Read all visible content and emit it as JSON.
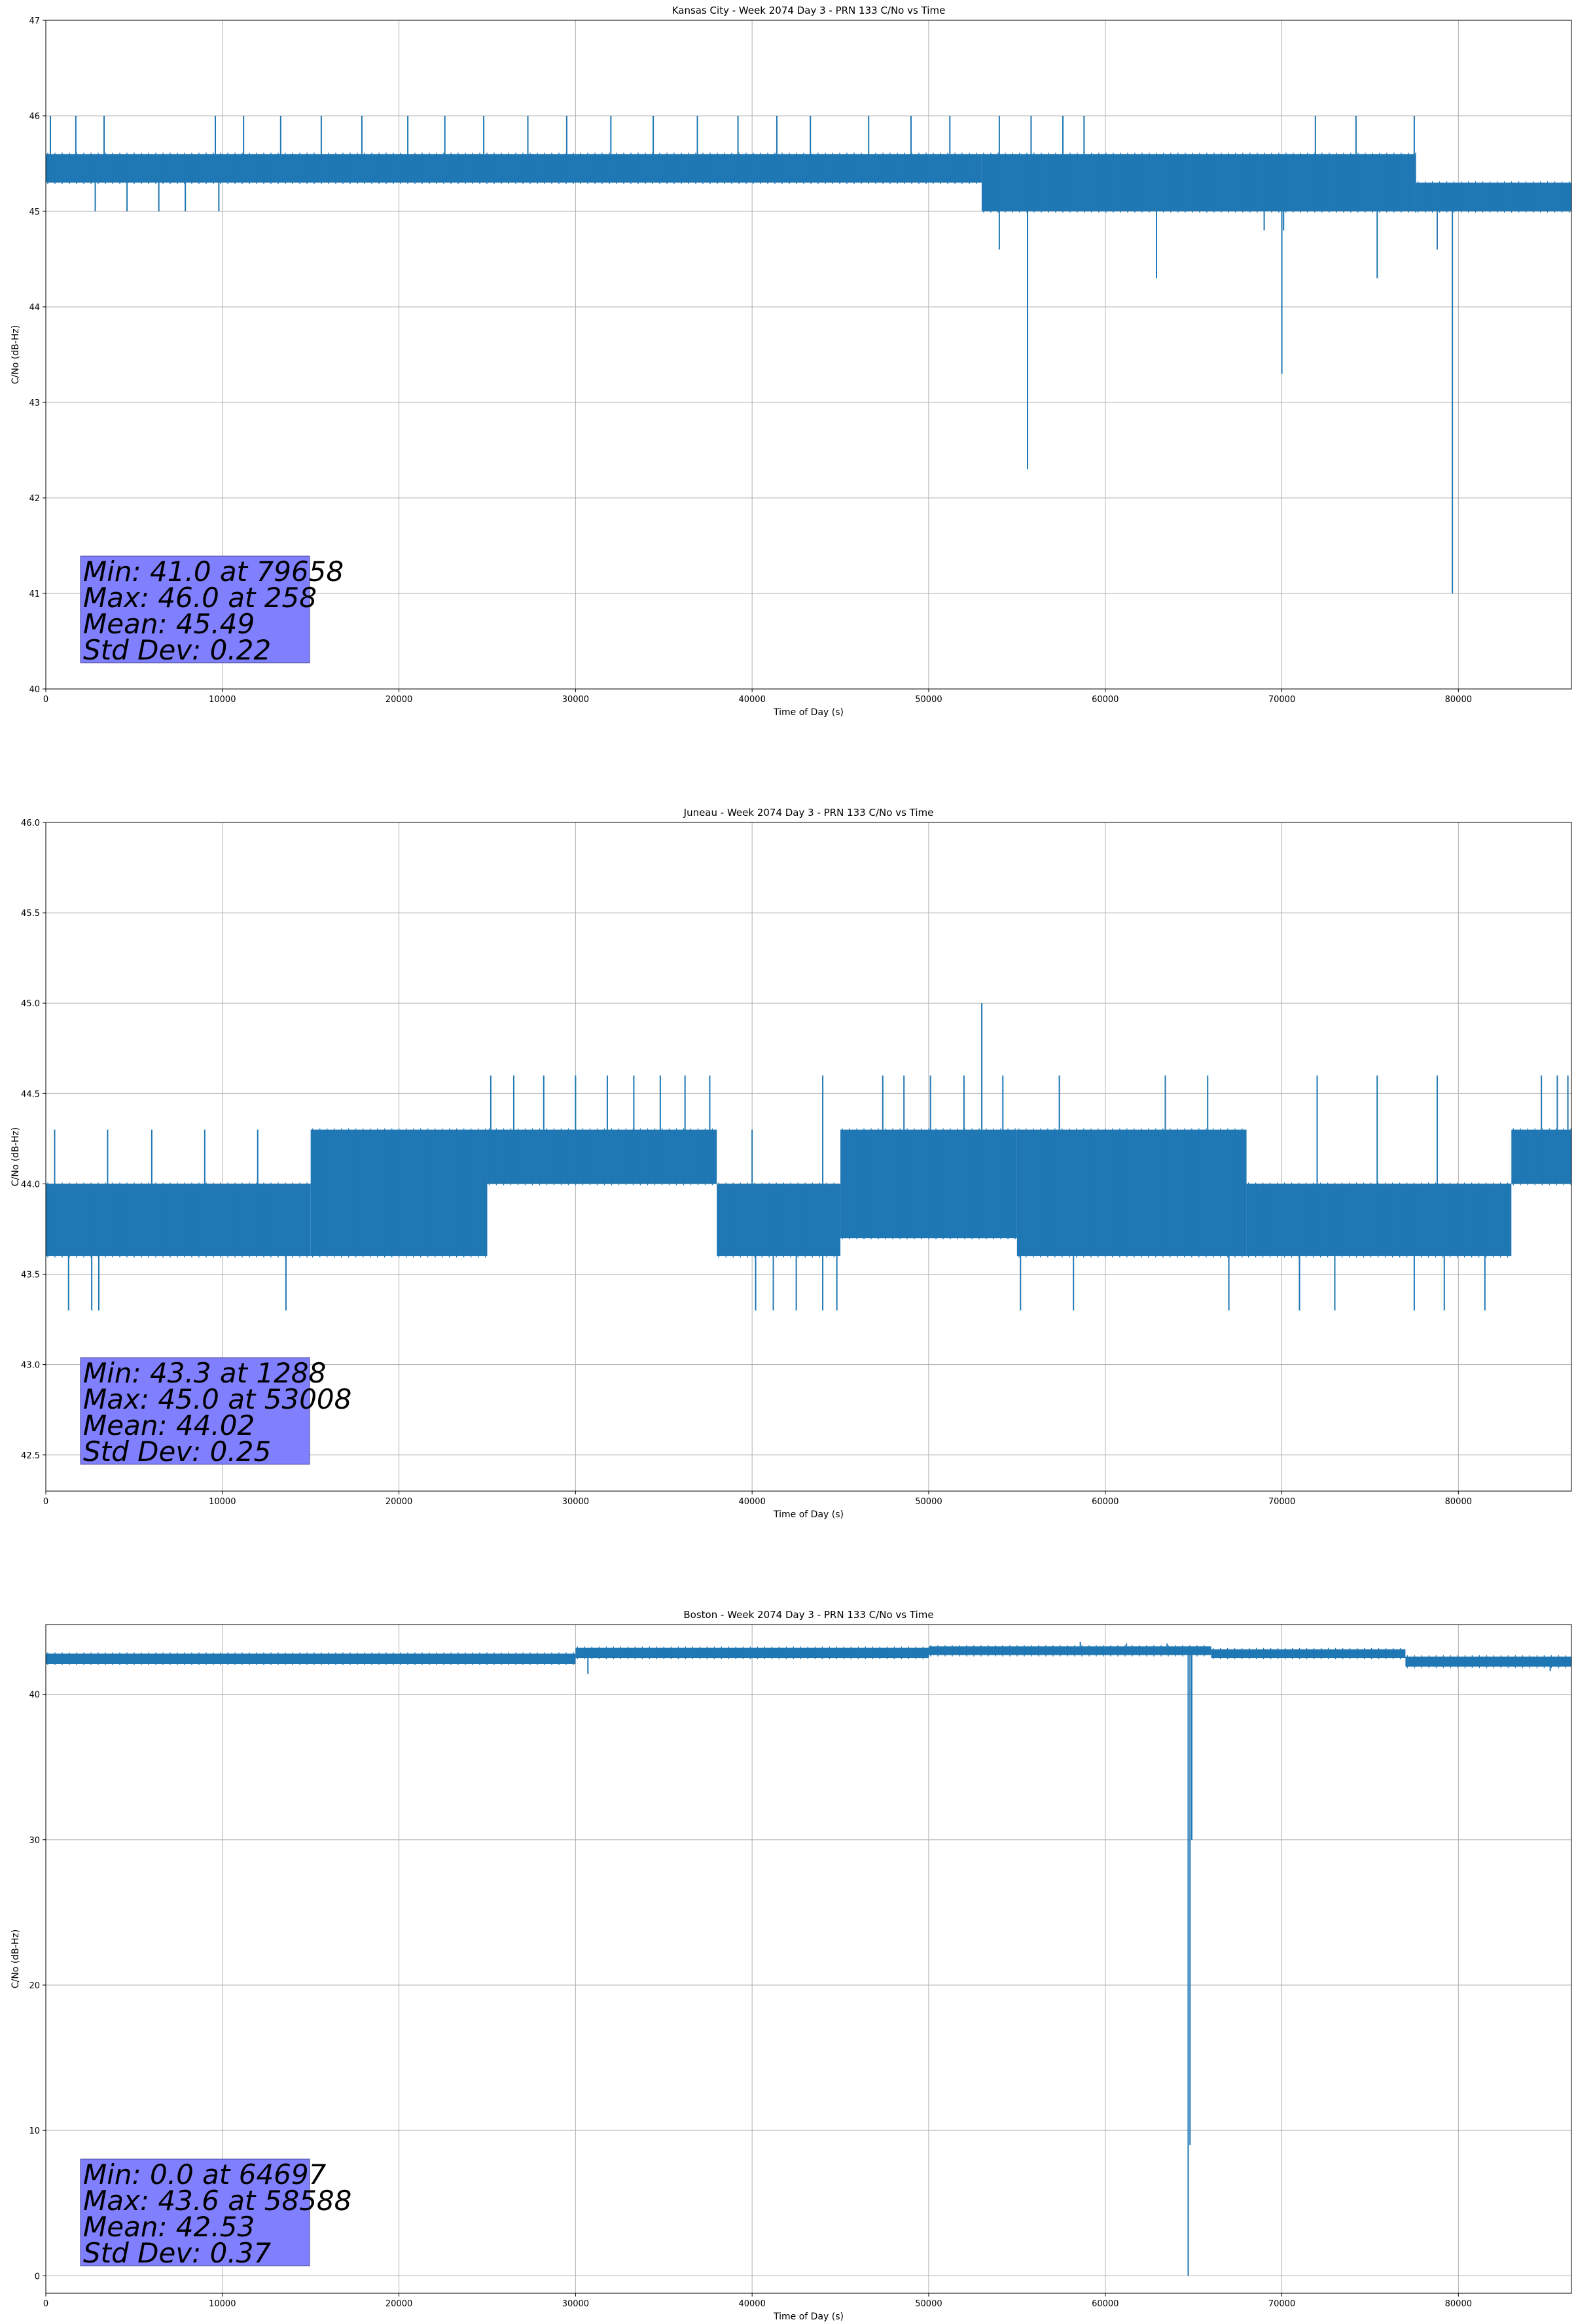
{
  "figure": {
    "colors": {
      "line": "#1f77b4",
      "grid": "#b0b0b0",
      "stats_box": "#8080ff"
    }
  },
  "chart_data": [
    {
      "type": "line",
      "title": "Kansas City - Week 2074 Day 3 - PRN 133 C/No vs Time",
      "xlabel": "Time of Day (s)",
      "ylabel": "C/No (dB-Hz)",
      "xlim": [
        0,
        86400
      ],
      "ylim": [
        40,
        47
      ],
      "xticks": [
        0,
        10000,
        20000,
        30000,
        40000,
        50000,
        60000,
        70000,
        80000
      ],
      "yticks": [
        40,
        41,
        42,
        43,
        44,
        45,
        46,
        47
      ],
      "grid": true,
      "legend": "none",
      "stats": [
        "Min: 41.0 at 79658",
        "Max: 46.0 at 258",
        "Mean: 45.49",
        "Std Dev: 0.22"
      ],
      "series": [
        {
          "color": "#1f77b4",
          "bands": [
            {
              "x": [
                0,
                53000
              ],
              "lo": 45.3,
              "hi": 45.6
            },
            {
              "x": [
                53000,
                77600
              ],
              "lo": 45.0,
              "hi": 45.6
            },
            {
              "x": [
                77600,
                86400
              ],
              "lo": 45.0,
              "hi": 45.3
            }
          ],
          "spikes_up": [
            {
              "x": 258,
              "y": 46.0
            },
            {
              "x": 1700,
              "y": 46.0
            },
            {
              "x": 3300,
              "y": 46.0
            },
            {
              "x": 9600,
              "y": 46.0
            },
            {
              "x": 11200,
              "y": 46.0
            },
            {
              "x": 13300,
              "y": 46.0
            },
            {
              "x": 15600,
              "y": 46.0
            },
            {
              "x": 17900,
              "y": 46.0
            },
            {
              "x": 20500,
              "y": 46.0
            },
            {
              "x": 22600,
              "y": 46.0
            },
            {
              "x": 24800,
              "y": 46.0
            },
            {
              "x": 27300,
              "y": 46.0
            },
            {
              "x": 29500,
              "y": 46.0
            },
            {
              "x": 32000,
              "y": 46.0
            },
            {
              "x": 34400,
              "y": 46.0
            },
            {
              "x": 36900,
              "y": 46.0
            },
            {
              "x": 39200,
              "y": 46.0
            },
            {
              "x": 41400,
              "y": 46.0
            },
            {
              "x": 43300,
              "y": 46.0
            },
            {
              "x": 46600,
              "y": 46.0
            },
            {
              "x": 49000,
              "y": 46.0
            },
            {
              "x": 51200,
              "y": 46.0
            },
            {
              "x": 54000,
              "y": 46.0
            },
            {
              "x": 55800,
              "y": 46.0
            },
            {
              "x": 57600,
              "y": 46.0
            },
            {
              "x": 58800,
              "y": 46.0
            },
            {
              "x": 71900,
              "y": 46.0
            },
            {
              "x": 74200,
              "y": 46.0
            },
            {
              "x": 77500,
              "y": 46.0
            }
          ],
          "spikes_down": [
            {
              "x": 2800,
              "y": 45.0
            },
            {
              "x": 4600,
              "y": 45.0
            },
            {
              "x": 6400,
              "y": 45.0
            },
            {
              "x": 7900,
              "y": 45.0
            },
            {
              "x": 9800,
              "y": 45.0
            },
            {
              "x": 54000,
              "y": 44.6
            },
            {
              "x": 55600,
              "y": 42.3
            },
            {
              "x": 59300,
              "y": 45.0
            },
            {
              "x": 62900,
              "y": 44.3
            },
            {
              "x": 65400,
              "y": 45.0
            },
            {
              "x": 69000,
              "y": 44.8
            },
            {
              "x": 70000,
              "y": 43.3
            },
            {
              "x": 70100,
              "y": 44.8
            },
            {
              "x": 75400,
              "y": 44.3
            },
            {
              "x": 78800,
              "y": 44.6
            },
            {
              "x": 79658,
              "y": 41.0
            }
          ]
        }
      ]
    },
    {
      "type": "line",
      "title": "Juneau - Week 2074 Day 3 - PRN 133 C/No vs Time",
      "xlabel": "Time of Day (s)",
      "ylabel": "C/No (dB-Hz)",
      "xlim": [
        0,
        86400
      ],
      "ylim": [
        42.3,
        46.0
      ],
      "xticks": [
        0,
        10000,
        20000,
        30000,
        40000,
        50000,
        60000,
        70000,
        80000
      ],
      "yticks": [
        42.5,
        43.0,
        43.5,
        44.0,
        44.5,
        45.0,
        45.5,
        46.0
      ],
      "grid": true,
      "legend": "none",
      "stats": [
        "Min: 43.3 at 1288",
        "Max: 45.0 at 53008",
        "Mean: 44.02",
        "Std Dev: 0.25"
      ],
      "series": [
        {
          "color": "#1f77b4",
          "bands": [
            {
              "x": [
                0,
                15000
              ],
              "lo": 43.6,
              "hi": 44.0
            },
            {
              "x": [
                15000,
                25000
              ],
              "lo": 43.6,
              "hi": 44.3
            },
            {
              "x": [
                25000,
                38000
              ],
              "lo": 44.0,
              "hi": 44.3
            },
            {
              "x": [
                38000,
                45000
              ],
              "lo": 43.6,
              "hi": 44.0
            },
            {
              "x": [
                45000,
                55000
              ],
              "lo": 43.7,
              "hi": 44.3
            },
            {
              "x": [
                55000,
                68000
              ],
              "lo": 43.6,
              "hi": 44.3
            },
            {
              "x": [
                68000,
                83000
              ],
              "lo": 43.6,
              "hi": 44.0
            },
            {
              "x": [
                83000,
                86400
              ],
              "lo": 44.0,
              "hi": 44.3
            }
          ],
          "spikes_up": [
            {
              "x": 500,
              "y": 44.3
            },
            {
              "x": 3500,
              "y": 44.3
            },
            {
              "x": 6000,
              "y": 44.3
            },
            {
              "x": 9000,
              "y": 44.3
            },
            {
              "x": 12000,
              "y": 44.3
            },
            {
              "x": 25200,
              "y": 44.6
            },
            {
              "x": 26500,
              "y": 44.6
            },
            {
              "x": 28200,
              "y": 44.6
            },
            {
              "x": 30000,
              "y": 44.6
            },
            {
              "x": 31800,
              "y": 44.6
            },
            {
              "x": 33300,
              "y": 44.6
            },
            {
              "x": 34800,
              "y": 44.6
            },
            {
              "x": 36200,
              "y": 44.6
            },
            {
              "x": 37600,
              "y": 44.6
            },
            {
              "x": 40000,
              "y": 44.3
            },
            {
              "x": 44000,
              "y": 44.6
            },
            {
              "x": 47400,
              "y": 44.6
            },
            {
              "x": 48600,
              "y": 44.6
            },
            {
              "x": 50100,
              "y": 44.6
            },
            {
              "x": 52000,
              "y": 44.6
            },
            {
              "x": 53008,
              "y": 45.0
            },
            {
              "x": 54200,
              "y": 44.6
            },
            {
              "x": 57400,
              "y": 44.6
            },
            {
              "x": 63400,
              "y": 44.6
            },
            {
              "x": 65800,
              "y": 44.6
            },
            {
              "x": 72000,
              "y": 44.6
            },
            {
              "x": 75400,
              "y": 44.6
            },
            {
              "x": 78800,
              "y": 44.6
            },
            {
              "x": 84700,
              "y": 44.6
            },
            {
              "x": 85600,
              "y": 44.6
            },
            {
              "x": 86200,
              "y": 44.6
            }
          ],
          "spikes_down": [
            {
              "x": 1288,
              "y": 43.3
            },
            {
              "x": 2600,
              "y": 43.3
            },
            {
              "x": 3000,
              "y": 43.3
            },
            {
              "x": 13600,
              "y": 43.3
            },
            {
              "x": 39200,
              "y": 43.6
            },
            {
              "x": 40200,
              "y": 43.3
            },
            {
              "x": 41200,
              "y": 43.3
            },
            {
              "x": 42500,
              "y": 43.3
            },
            {
              "x": 44000,
              "y": 43.3
            },
            {
              "x": 44800,
              "y": 43.3
            },
            {
              "x": 55200,
              "y": 43.3
            },
            {
              "x": 58200,
              "y": 43.3
            },
            {
              "x": 67000,
              "y": 43.3
            },
            {
              "x": 71000,
              "y": 43.3
            },
            {
              "x": 73000,
              "y": 43.3
            },
            {
              "x": 77500,
              "y": 43.3
            },
            {
              "x": 79200,
              "y": 43.3
            },
            {
              "x": 81500,
              "y": 43.3
            }
          ]
        }
      ]
    },
    {
      "type": "line",
      "title": "Boston - Week 2074 Day 3 - PRN 133 C/No vs Time",
      "xlabel": "Time of Day (s)",
      "ylabel": "C/No (dB-Hz)",
      "xlim": [
        0,
        86400
      ],
      "ylim": [
        -1.2,
        44.8
      ],
      "xticks": [
        0,
        10000,
        20000,
        30000,
        40000,
        50000,
        60000,
        70000,
        80000
      ],
      "yticks": [
        0,
        10,
        20,
        30,
        40
      ],
      "grid": true,
      "legend": "none",
      "stats": [
        "Min: 0.0 at 64697",
        "Max: 43.6 at 58588",
        "Mean: 42.53",
        "Std Dev: 0.37"
      ],
      "series": [
        {
          "color": "#1f77b4",
          "bands": [
            {
              "x": [
                0,
                30000
              ],
              "lo": 42.1,
              "hi": 42.8
            },
            {
              "x": [
                30000,
                50000
              ],
              "lo": 42.5,
              "hi": 43.2
            },
            {
              "x": [
                50000,
                66000
              ],
              "lo": 42.7,
              "hi": 43.3
            },
            {
              "x": [
                66000,
                77000
              ],
              "lo": 42.5,
              "hi": 43.1
            },
            {
              "x": [
                77000,
                86400
              ],
              "lo": 41.9,
              "hi": 42.6
            }
          ],
          "spikes_up": [
            {
              "x": 58588,
              "y": 43.6
            },
            {
              "x": 61200,
              "y": 43.5
            },
            {
              "x": 63500,
              "y": 43.5
            }
          ],
          "spikes_down": [
            {
              "x": 30700,
              "y": 41.4
            },
            {
              "x": 64697,
              "y": 0.0
            },
            {
              "x": 64800,
              "y": 9.0
            },
            {
              "x": 64900,
              "y": 30.0
            },
            {
              "x": 85200,
              "y": 41.6
            }
          ]
        }
      ]
    }
  ]
}
